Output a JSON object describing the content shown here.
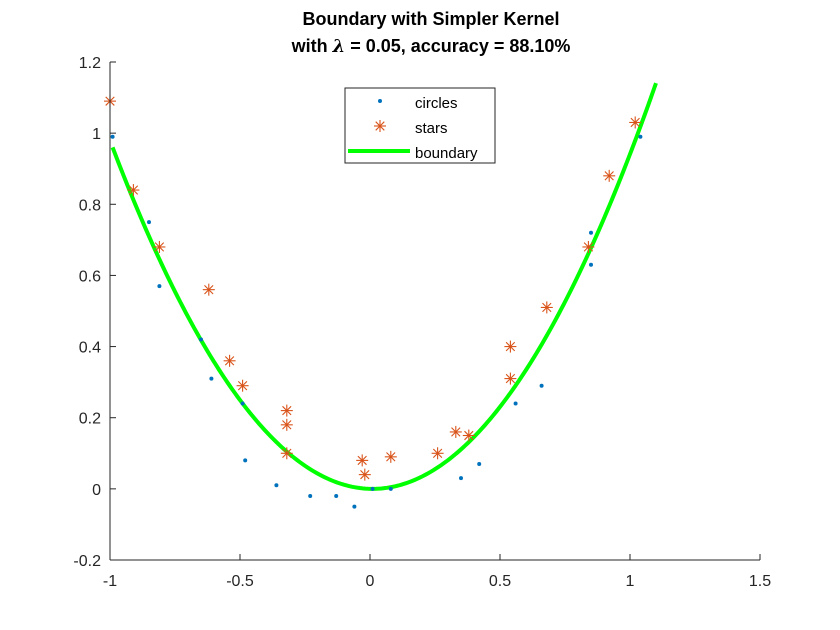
{
  "chart_data": {
    "type": "scatter",
    "title": "Boundary with Simpler Kernel",
    "subtitle_prefix": "with ",
    "subtitle_symbol": "λ",
    "subtitle_suffix": " = 0.05, accuracy = 88.10%",
    "xlabel": "",
    "ylabel": "",
    "xlim": [
      -1,
      1.5
    ],
    "ylim": [
      -0.2,
      1.2
    ],
    "xticks": [
      -1,
      -0.5,
      0,
      0.5,
      1,
      1.5
    ],
    "xtick_labels": [
      "-1",
      "-0.5",
      "0",
      "0.5",
      "1",
      "1.5"
    ],
    "yticks": [
      -0.2,
      0,
      0.2,
      0.4,
      0.6,
      0.8,
      1,
      1.2
    ],
    "ytick_labels": [
      "-0.2",
      "0",
      "0.2",
      "0.4",
      "0.6",
      "0.8",
      "1",
      "1.2"
    ],
    "grid": false,
    "legend_position": "top-center",
    "series": [
      {
        "name": "circles",
        "marker": "dot",
        "color": "#0072bd",
        "points": [
          [
            -0.99,
            0.99
          ],
          [
            -0.85,
            0.75
          ],
          [
            -0.81,
            0.57
          ],
          [
            -0.65,
            0.42
          ],
          [
            -0.61,
            0.31
          ],
          [
            -0.49,
            0.24
          ],
          [
            -0.48,
            0.08
          ],
          [
            -0.36,
            0.01
          ],
          [
            -0.23,
            -0.02
          ],
          [
            -0.13,
            -0.02
          ],
          [
            -0.06,
            -0.05
          ],
          [
            0.01,
            0.0
          ],
          [
            0.08,
            0.0
          ],
          [
            0.35,
            0.03
          ],
          [
            0.42,
            0.07
          ],
          [
            0.56,
            0.24
          ],
          [
            0.66,
            0.29
          ],
          [
            0.85,
            0.72
          ],
          [
            0.85,
            0.63
          ],
          [
            1.04,
            0.99
          ]
        ]
      },
      {
        "name": "stars",
        "marker": "asterisk",
        "color": "#d95319",
        "points": [
          [
            -1.0,
            1.09
          ],
          [
            -0.91,
            0.84
          ],
          [
            -0.81,
            0.68
          ],
          [
            -0.62,
            0.56
          ],
          [
            -0.54,
            0.36
          ],
          [
            -0.49,
            0.29
          ],
          [
            -0.32,
            0.22
          ],
          [
            -0.32,
            0.18
          ],
          [
            -0.32,
            0.1
          ],
          [
            -0.03,
            0.08
          ],
          [
            -0.02,
            0.04
          ],
          [
            0.08,
            0.09
          ],
          [
            0.26,
            0.1
          ],
          [
            0.33,
            0.16
          ],
          [
            0.38,
            0.15
          ],
          [
            0.54,
            0.4
          ],
          [
            0.54,
            0.31
          ],
          [
            0.68,
            0.51
          ],
          [
            0.84,
            0.68
          ],
          [
            0.92,
            0.88
          ],
          [
            1.02,
            1.03
          ]
        ]
      },
      {
        "name": "boundary",
        "marker": "line",
        "color": "#00ff00",
        "line_width": 4,
        "curve": {
          "form": "y = a*(x - h)^2",
          "a": 0.96,
          "h": 0.01,
          "x_range": [
            -0.99,
            1.1
          ]
        }
      }
    ]
  }
}
